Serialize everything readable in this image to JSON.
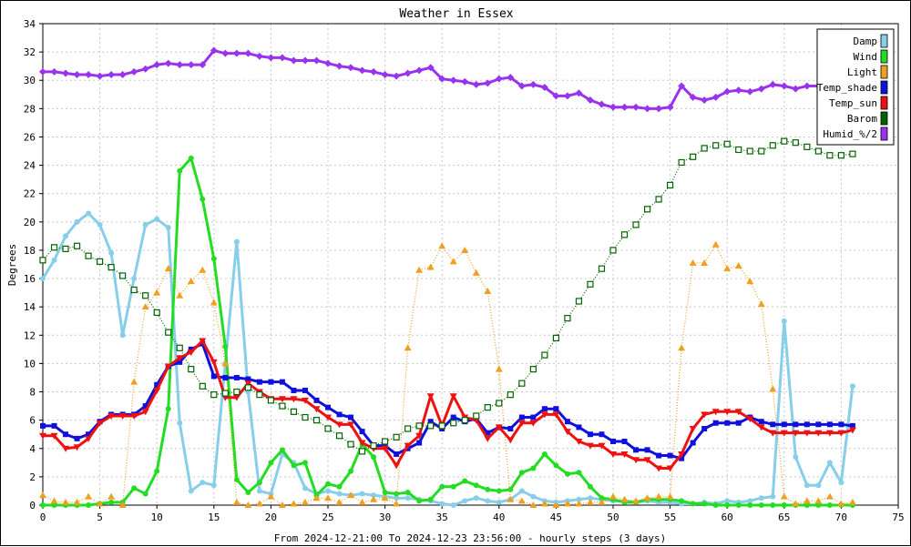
{
  "chart_data": {
    "type": "line",
    "title": "Weather in Essex",
    "xlabel": "From 2024-12-21:00 To 2024-12-23 23:56:00 - hourly steps (3 days)",
    "ylabel": "Degrees",
    "xlim": [
      0,
      75
    ],
    "ylim": [
      0,
      34
    ],
    "x_ticks": [
      0,
      5,
      10,
      15,
      20,
      25,
      30,
      35,
      40,
      45,
      50,
      55,
      60,
      65,
      70,
      75
    ],
    "y_ticks": [
      0,
      2,
      4,
      6,
      8,
      10,
      12,
      14,
      16,
      18,
      20,
      22,
      24,
      26,
      28,
      30,
      32,
      34
    ],
    "grid": true,
    "legend_position": "top-right",
    "series": [
      {
        "name": "Damp",
        "color": "#87ceeb",
        "marker": "circle",
        "style": "solid",
        "values": [
          16.0,
          17.3,
          19.0,
          20.0,
          20.6,
          19.8,
          17.8,
          12.0,
          16.0,
          19.8,
          20.2,
          19.6,
          5.8,
          1.0,
          1.6,
          1.4,
          10.0,
          18.6,
          8.0,
          1.0,
          0.8,
          3.6,
          3.0,
          1.2,
          0.8,
          1.0,
          0.8,
          0.7,
          0.8,
          0.7,
          0.6,
          0.5,
          0.5,
          0.4,
          0.3,
          0.1,
          0.0,
          0.3,
          0.5,
          0.3,
          0.2,
          0.4,
          1.0,
          0.6,
          0.3,
          0.2,
          0.3,
          0.4,
          0.5,
          0.4,
          0.3,
          0.3,
          0.2,
          0.3,
          0.2,
          0.2,
          0.1,
          0.1,
          0.2,
          0.1,
          0.3,
          0.2,
          0.3,
          0.5,
          0.6,
          13.0,
          3.4,
          1.4,
          1.4,
          3.0,
          1.6,
          8.4
        ]
      },
      {
        "name": "Wind",
        "color": "#22dd22",
        "marker": "circle",
        "style": "solid",
        "values": [
          0.0,
          0.0,
          0.0,
          0.0,
          0.0,
          0.1,
          0.2,
          0.2,
          1.2,
          0.8,
          2.4,
          6.8,
          23.6,
          24.5,
          21.6,
          17.4,
          11.2,
          1.8,
          0.9,
          1.6,
          3.0,
          3.9,
          2.8,
          3.0,
          0.7,
          1.5,
          1.3,
          2.4,
          4.3,
          3.4,
          0.9,
          0.8,
          0.9,
          0.3,
          0.4,
          1.3,
          1.3,
          1.7,
          1.4,
          1.1,
          1.0,
          1.1,
          2.3,
          2.6,
          3.6,
          2.8,
          2.2,
          2.3,
          1.3,
          0.5,
          0.4,
          0.2,
          0.2,
          0.4,
          0.4,
          0.4,
          0.3,
          0.1,
          0.1,
          0.0,
          0.0,
          0.0,
          0.0,
          0.0,
          0.0,
          0.0,
          0.0,
          0.0,
          0.0,
          0.0,
          0.0,
          0.0
        ]
      },
      {
        "name": "Light",
        "color": "#f0a020",
        "marker": "triangle-up",
        "style": "dotted",
        "values": [
          0.7,
          0.3,
          0.2,
          0.2,
          0.6,
          0.1,
          0.6,
          0.0,
          8.7,
          14.0,
          15.0,
          16.7,
          14.8,
          15.8,
          16.6,
          14.3,
          10.0,
          0.2,
          0.0,
          0.1,
          0.6,
          0.0,
          0.1,
          0.2,
          0.5,
          0.5,
          0.2,
          0.7,
          0.2,
          0.4,
          0.5,
          0.1,
          11.1,
          16.6,
          16.8,
          18.3,
          17.2,
          18.0,
          16.4,
          15.1,
          9.6,
          0.4,
          0.3,
          0.0,
          0.1,
          0.0,
          0.1,
          0.1,
          0.2,
          0.2,
          0.6,
          0.4,
          0.3,
          0.5,
          0.6,
          0.6,
          11.1,
          17.1,
          17.1,
          18.4,
          16.7,
          16.9,
          15.8,
          14.2,
          8.2,
          0.6,
          0.1,
          0.3,
          0.3,
          0.6,
          0.1,
          0.2
        ]
      },
      {
        "name": "Temp_shade",
        "color": "#1010dd",
        "marker": "square",
        "style": "solid",
        "values": [
          5.6,
          5.6,
          5.0,
          4.7,
          5.0,
          5.9,
          6.4,
          6.4,
          6.4,
          7.0,
          8.5,
          9.8,
          10.1,
          11.0,
          11.4,
          9.1,
          9.0,
          9.0,
          8.9,
          8.7,
          8.7,
          8.7,
          8.1,
          8.1,
          7.4,
          6.9,
          6.4,
          6.2,
          5.2,
          4.2,
          4.2,
          3.6,
          4.0,
          4.4,
          5.9,
          5.4,
          6.2,
          5.9,
          6.1,
          5.1,
          5.5,
          5.4,
          6.2,
          6.2,
          6.8,
          6.8,
          5.9,
          5.5,
          5.0,
          5.0,
          4.5,
          4.5,
          3.9,
          3.9,
          3.5,
          3.5,
          3.3,
          4.4,
          5.4,
          5.8,
          5.8,
          5.8,
          6.2,
          5.9,
          5.7,
          5.7,
          5.7,
          5.7,
          5.7,
          5.7,
          5.7,
          5.6
        ]
      },
      {
        "name": "Temp_sun",
        "color": "#ee1111",
        "marker": "triangle-down",
        "style": "solid",
        "values": [
          4.9,
          4.9,
          4.0,
          4.1,
          4.7,
          5.8,
          6.3,
          6.3,
          6.3,
          6.6,
          8.1,
          9.8,
          10.4,
          10.8,
          11.6,
          10.1,
          7.6,
          7.6,
          8.6,
          8.0,
          7.5,
          7.5,
          7.5,
          7.4,
          6.8,
          6.2,
          5.7,
          5.7,
          4.4,
          4.0,
          4.0,
          2.8,
          4.2,
          4.9,
          7.7,
          5.6,
          7.7,
          6.2,
          6.0,
          4.7,
          5.5,
          4.6,
          5.8,
          5.8,
          6.4,
          6.4,
          5.2,
          4.5,
          4.2,
          4.2,
          3.6,
          3.6,
          3.2,
          3.2,
          2.6,
          2.6,
          3.6,
          5.4,
          6.4,
          6.6,
          6.6,
          6.6,
          6.1,
          5.5,
          5.1,
          5.1,
          5.1,
          5.1,
          5.1,
          5.1,
          5.1,
          5.3
        ]
      },
      {
        "name": "Barom",
        "color": "#006400",
        "marker": "open-square",
        "style": "dotted",
        "values": [
          17.3,
          18.2,
          18.1,
          18.3,
          17.6,
          17.2,
          16.8,
          16.2,
          15.2,
          14.8,
          13.6,
          12.2,
          11.1,
          9.6,
          8.4,
          7.8,
          7.9,
          8.0,
          8.3,
          7.8,
          7.4,
          7.0,
          6.6,
          6.2,
          6.0,
          5.4,
          4.9,
          4.3,
          3.8,
          4.2,
          4.5,
          4.8,
          5.4,
          5.6,
          5.6,
          5.6,
          5.8,
          6.0,
          6.3,
          6.9,
          7.2,
          7.8,
          8.6,
          9.6,
          10.6,
          11.8,
          13.2,
          14.4,
          15.6,
          16.7,
          18.0,
          19.1,
          19.8,
          20.9,
          21.6,
          22.6,
          24.2,
          24.6,
          25.2,
          25.4,
          25.5,
          25.1,
          25.0,
          25.0,
          25.4,
          25.7,
          25.6,
          25.3,
          25.0,
          24.7,
          24.7,
          24.8
        ]
      },
      {
        "name": "Humid_%/2",
        "color": "#9933ee",
        "marker": "diamond",
        "style": "solid",
        "values": [
          30.6,
          30.6,
          30.5,
          30.4,
          30.4,
          30.3,
          30.4,
          30.4,
          30.6,
          30.8,
          31.1,
          31.2,
          31.1,
          31.1,
          31.1,
          32.1,
          31.9,
          31.9,
          31.9,
          31.7,
          31.6,
          31.6,
          31.4,
          31.4,
          31.4,
          31.2,
          31.0,
          30.9,
          30.7,
          30.6,
          30.4,
          30.3,
          30.5,
          30.7,
          30.9,
          30.1,
          30.0,
          29.9,
          29.7,
          29.8,
          30.1,
          30.2,
          29.6,
          29.7,
          29.5,
          28.9,
          28.9,
          29.1,
          28.6,
          28.3,
          28.1,
          28.1,
          28.1,
          28.0,
          28.0,
          28.1,
          29.6,
          28.8,
          28.6,
          28.8,
          29.2,
          29.3,
          29.2,
          29.4,
          29.7,
          29.6,
          29.4,
          29.6,
          29.6,
          29.5,
          29.6,
          29.6
        ]
      }
    ]
  }
}
